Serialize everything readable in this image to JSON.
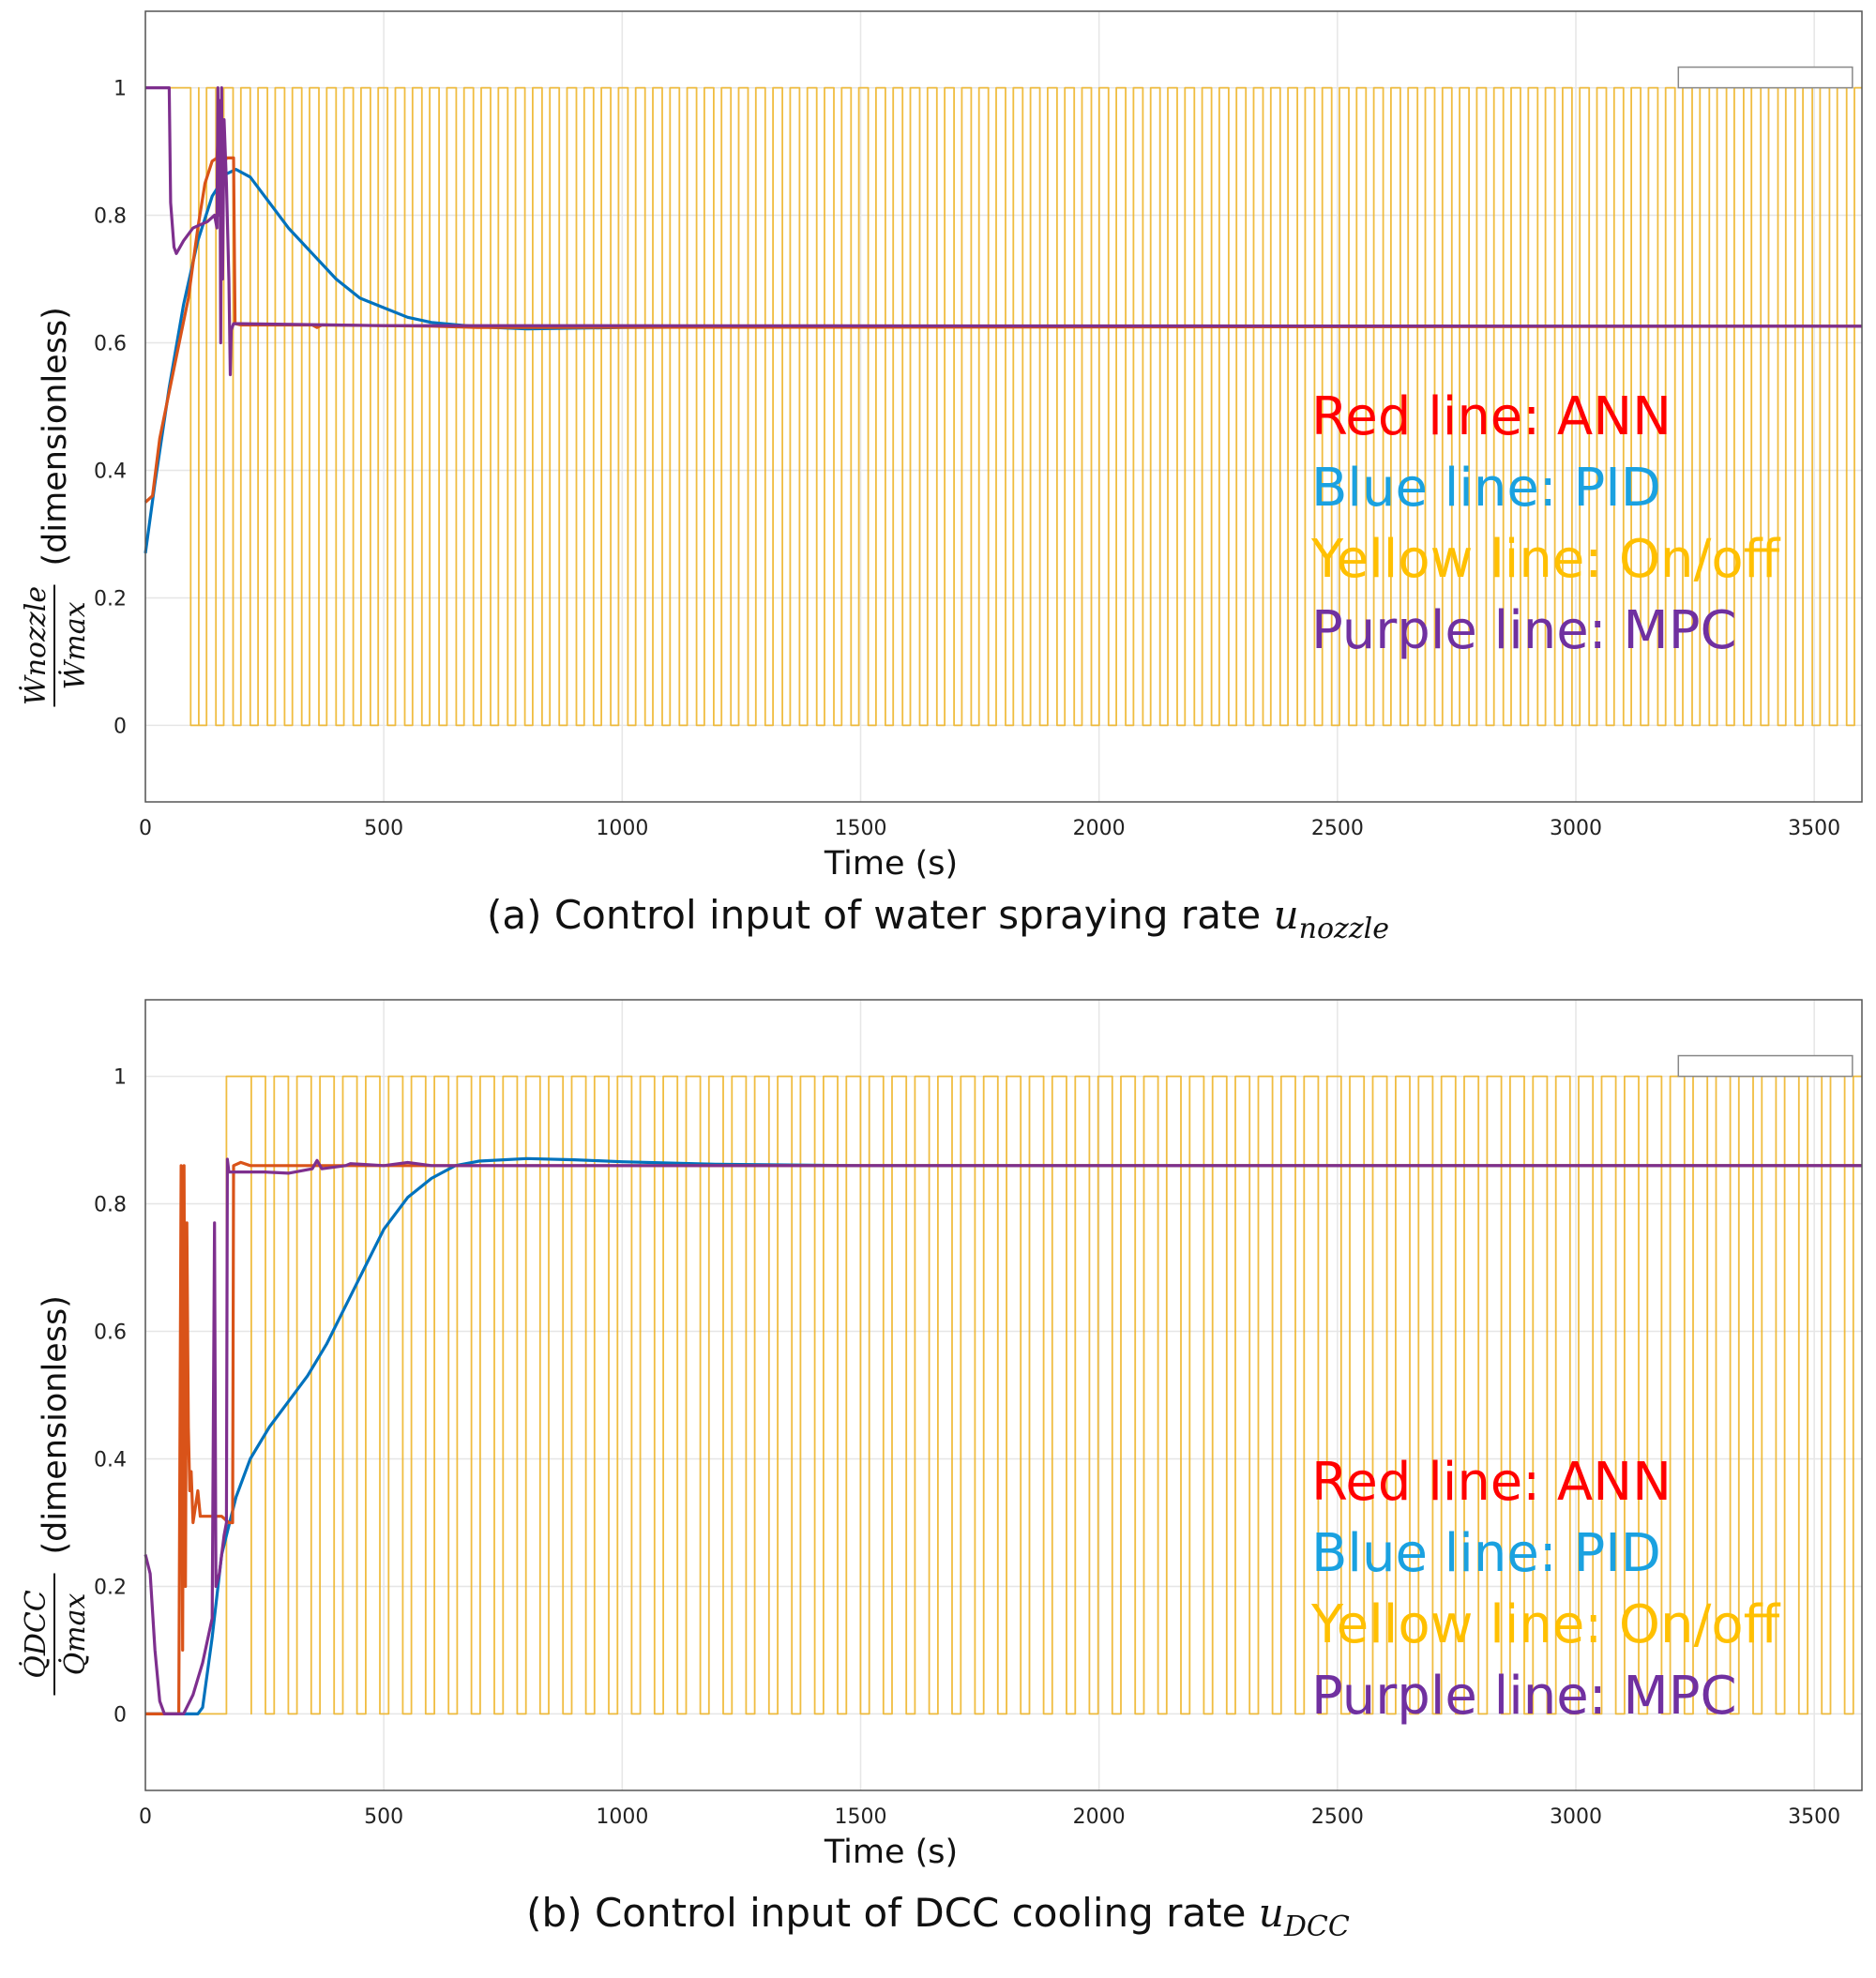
{
  "colors": {
    "ann": "#D95319",
    "pid": "#0072BD",
    "onoff": "#EDB120",
    "mpc": "#7E2F8E",
    "legend_red": "#FF0000",
    "legend_blue": "#1AA1E0",
    "legend_yellow": "#FFC000",
    "legend_purple": "#7030A0"
  },
  "chart_data": [
    {
      "type": "line",
      "xlabel": "Time (s)",
      "ylabel": {
        "numerator": "Ẇnozzle",
        "denominator": "Ẇmax",
        "suffix": "(dimensionless)"
      },
      "xlim": [
        0,
        3600
      ],
      "ylim": [
        -0.12,
        1.12
      ],
      "xticks": [
        "0",
        "500",
        "1000",
        "1500",
        "2000",
        "2500",
        "3000",
        "3500"
      ],
      "yticks": [
        "0",
        "0.2",
        "0.4",
        "0.6",
        "0.8",
        "1"
      ],
      "grid": true,
      "legend_position": "right-middle",
      "legend": [
        "Red line: ANN",
        "Blue line: PID",
        "Yellow line: On/off",
        "Purple line: MPC"
      ],
      "caption": {
        "text": "(a) Control input of water spraying rate ",
        "var": "u",
        "sub": "nozzle"
      },
      "series": [
        {
          "key": "onoff",
          "style": "square",
          "lo": 0,
          "hi": 1,
          "start_on": true,
          "first_off": 95,
          "first_on": 112,
          "period": 36,
          "duty": 0.55,
          "end": 3600
        },
        {
          "key": "pid",
          "points": [
            [
              0,
              0.27
            ],
            [
              20,
              0.38
            ],
            [
              50,
              0.53
            ],
            [
              80,
              0.66
            ],
            [
              110,
              0.76
            ],
            [
              140,
              0.83
            ],
            [
              170,
              0.865
            ],
            [
              190,
              0.872
            ],
            [
              220,
              0.86
            ],
            [
              260,
              0.82
            ],
            [
              300,
              0.78
            ],
            [
              350,
              0.74
            ],
            [
              400,
              0.7
            ],
            [
              450,
              0.67
            ],
            [
              500,
              0.655
            ],
            [
              550,
              0.64
            ],
            [
              600,
              0.632
            ],
            [
              700,
              0.625
            ],
            [
              800,
              0.622
            ],
            [
              1000,
              0.624
            ],
            [
              1500,
              0.626
            ],
            [
              3600,
              0.626
            ]
          ]
        },
        {
          "key": "ann",
          "points": [
            [
              0,
              0.35
            ],
            [
              15,
              0.36
            ],
            [
              30,
              0.45
            ],
            [
              60,
              0.56
            ],
            [
              90,
              0.67
            ],
            [
              110,
              0.78
            ],
            [
              125,
              0.85
            ],
            [
              140,
              0.885
            ],
            [
              150,
              0.89
            ],
            [
              155,
              0.95
            ],
            [
              160,
              0.87
            ],
            [
              170,
              0.89
            ],
            [
              180,
              0.89
            ],
            [
              185,
              0.89
            ],
            [
              188,
              0.63
            ],
            [
              200,
              0.628
            ],
            [
              350,
              0.628
            ],
            [
              360,
              0.624
            ],
            [
              370,
              0.628
            ],
            [
              600,
              0.626
            ],
            [
              700,
              0.624
            ],
            [
              3600,
              0.626
            ]
          ]
        },
        {
          "key": "mpc",
          "points": [
            [
              0,
              1.0
            ],
            [
              50,
              1.0
            ],
            [
              53,
              0.82
            ],
            [
              60,
              0.75
            ],
            [
              65,
              0.74
            ],
            [
              80,
              0.76
            ],
            [
              100,
              0.78
            ],
            [
              130,
              0.79
            ],
            [
              145,
              0.8
            ],
            [
              150,
              0.78
            ],
            [
              152,
              1.0
            ],
            [
              154,
              0.8
            ],
            [
              156,
              0.98
            ],
            [
              158,
              0.6
            ],
            [
              160,
              1.0
            ],
            [
              162,
              0.7
            ],
            [
              165,
              0.95
            ],
            [
              170,
              0.85
            ],
            [
              175,
              0.7
            ],
            [
              178,
              0.55
            ],
            [
              180,
              0.62
            ],
            [
              185,
              0.63
            ],
            [
              200,
              0.63
            ],
            [
              400,
              0.628
            ],
            [
              500,
              0.627
            ],
            [
              3600,
              0.626
            ]
          ]
        }
      ]
    },
    {
      "type": "line",
      "xlabel": "Time (s)",
      "ylabel": {
        "numerator": "Q̇DCC",
        "denominator": "Q̇max",
        "suffix": "(dimensionless)"
      },
      "xlim": [
        0,
        3600
      ],
      "ylim": [
        -0.12,
        1.12
      ],
      "xticks": [
        "0",
        "500",
        "1000",
        "1500",
        "2000",
        "2500",
        "3000",
        "3500"
      ],
      "yticks": [
        "0",
        "0.2",
        "0.4",
        "0.6",
        "0.8",
        "1"
      ],
      "grid": true,
      "legend_position": "right-middle",
      "legend": [
        "Red line: ANN",
        "Blue line: PID",
        "Yellow line: On/off",
        "Purple line: MPC"
      ],
      "caption": {
        "text": "(b) Control input of DCC cooling rate ",
        "var": "u",
        "sub": "DCC"
      },
      "series": [
        {
          "key": "onoff",
          "style": "square",
          "lo": 0,
          "hi": 1,
          "start_on": false,
          "first_on": 170,
          "first_off": 222,
          "period": 48,
          "duty": 0.62,
          "end": 3600
        },
        {
          "key": "onoff_lower",
          "style": "square",
          "lo": 0.855,
          "hi": 0.855,
          "start_on": false,
          "first_on": 200,
          "first_off": 200,
          "period": 48,
          "duty": 0.5,
          "end": 3600
        },
        {
          "key": "pid",
          "points": [
            [
              0,
              0
            ],
            [
              110,
              0
            ],
            [
              120,
              0.01
            ],
            [
              140,
              0.12
            ],
            [
              160,
              0.25
            ],
            [
              190,
              0.34
            ],
            [
              220,
              0.4
            ],
            [
              260,
              0.45
            ],
            [
              300,
              0.49
            ],
            [
              340,
              0.53
            ],
            [
              380,
              0.58
            ],
            [
              420,
              0.64
            ],
            [
              460,
              0.7
            ],
            [
              500,
              0.76
            ],
            [
              550,
              0.81
            ],
            [
              600,
              0.84
            ],
            [
              650,
              0.86
            ],
            [
              700,
              0.867
            ],
            [
              800,
              0.871
            ],
            [
              900,
              0.869
            ],
            [
              1000,
              0.866
            ],
            [
              1200,
              0.862
            ],
            [
              1500,
              0.86
            ],
            [
              3600,
              0.86
            ]
          ]
        },
        {
          "key": "ann",
          "points": [
            [
              0,
              0
            ],
            [
              70,
              0
            ],
            [
              75,
              0.86
            ],
            [
              78,
              0.1
            ],
            [
              81,
              0.86
            ],
            [
              84,
              0.2
            ],
            [
              87,
              0.77
            ],
            [
              90,
              0.45
            ],
            [
              93,
              0.35
            ],
            [
              96,
              0.38
            ],
            [
              100,
              0.3
            ],
            [
              110,
              0.35
            ],
            [
              115,
              0.31
            ],
            [
              140,
              0.31
            ],
            [
              160,
              0.31
            ],
            [
              175,
              0.3
            ],
            [
              183,
              0.3
            ],
            [
              185,
              0.86
            ],
            [
              200,
              0.865
            ],
            [
              220,
              0.86
            ],
            [
              300,
              0.86
            ],
            [
              500,
              0.86
            ],
            [
              3600,
              0.86
            ]
          ]
        },
        {
          "key": "mpc",
          "points": [
            [
              0,
              0.25
            ],
            [
              10,
              0.22
            ],
            [
              20,
              0.1
            ],
            [
              30,
              0.02
            ],
            [
              40,
              0
            ],
            [
              80,
              0
            ],
            [
              100,
              0.03
            ],
            [
              120,
              0.08
            ],
            [
              140,
              0.15
            ],
            [
              145,
              0.77
            ],
            [
              148,
              0.2
            ],
            [
              155,
              0.22
            ],
            [
              165,
              0.28
            ],
            [
              170,
              0.3
            ],
            [
              172,
              0.87
            ],
            [
              175,
              0.85
            ],
            [
              250,
              0.85
            ],
            [
              300,
              0.848
            ],
            [
              350,
              0.855
            ],
            [
              360,
              0.868
            ],
            [
              370,
              0.855
            ],
            [
              420,
              0.86
            ],
            [
              430,
              0.863
            ],
            [
              500,
              0.86
            ],
            [
              550,
              0.865
            ],
            [
              600,
              0.86
            ],
            [
              3600,
              0.86
            ]
          ]
        }
      ]
    }
  ]
}
